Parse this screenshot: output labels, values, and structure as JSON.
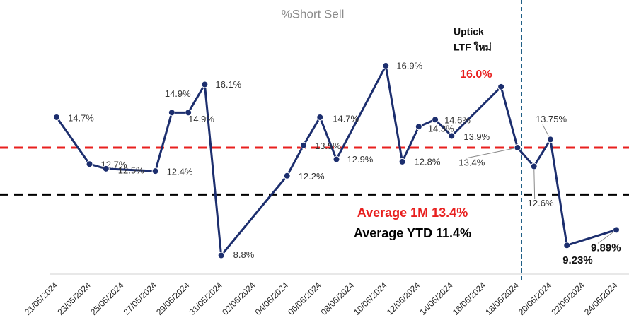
{
  "chart_data": {
    "type": "line",
    "title": "%Short Sell",
    "x": [
      "21/05/2024",
      "23/05/2024",
      "24/05/2024",
      "27/05/2024",
      "28/05/2024",
      "29/05/2024",
      "30/05/2024",
      "31/05/2024",
      "04/06/2024",
      "05/06/2024",
      "06/06/2024",
      "07/06/2024",
      "10/06/2024",
      "11/06/2024",
      "12/06/2024",
      "13/06/2024",
      "14/06/2024",
      "17/06/2024",
      "18/06/2024",
      "19/06/2024",
      "20/06/2024",
      "21/06/2024",
      "24/06/2024"
    ],
    "values": [
      14.7,
      12.7,
      12.5,
      12.4,
      14.9,
      14.9,
      16.1,
      8.8,
      12.2,
      13.5,
      14.7,
      12.9,
      16.9,
      12.8,
      14.3,
      14.6,
      13.9,
      16.0,
      13.4,
      12.6,
      13.75,
      9.23,
      9.89
    ],
    "value_labels": [
      "14.7%",
      "12.7%",
      "12.5%",
      "12.4%",
      "14.9%",
      "14.9%",
      "16.1%",
      "8.8%",
      "12.2%",
      "13.5%",
      "14.7%",
      "12.9%",
      "16.9%",
      "12.8%",
      "14.3%",
      "14.6%",
      "13.9%",
      "16.0%",
      "13.4%",
      "12.6%",
      "13.75%",
      "9.23%",
      "9.89%"
    ],
    "color": "#1c2e6e",
    "xticks": [
      "21/05/2024",
      "23/05/2024",
      "25/05/2024",
      "27/05/2024",
      "29/05/2024",
      "31/05/2024",
      "02/06/2024",
      "04/06/2024",
      "06/06/2024",
      "08/06/2024",
      "10/06/2024",
      "12/06/2024",
      "14/06/2024",
      "16/06/2024",
      "18/06/2024",
      "20/06/2024",
      "22/06/2024",
      "24/06/2024"
    ],
    "ylim": [
      8,
      18.5
    ],
    "reference_lines": [
      {
        "label": "Average 1M 13.4%",
        "value": 13.4,
        "color": "#e8201f"
      },
      {
        "label": "Average YTD 11.4%",
        "value": 11.4,
        "color": "#000000"
      }
    ],
    "annotation": [
      "Uptick",
      "LTF ใหม่"
    ]
  }
}
